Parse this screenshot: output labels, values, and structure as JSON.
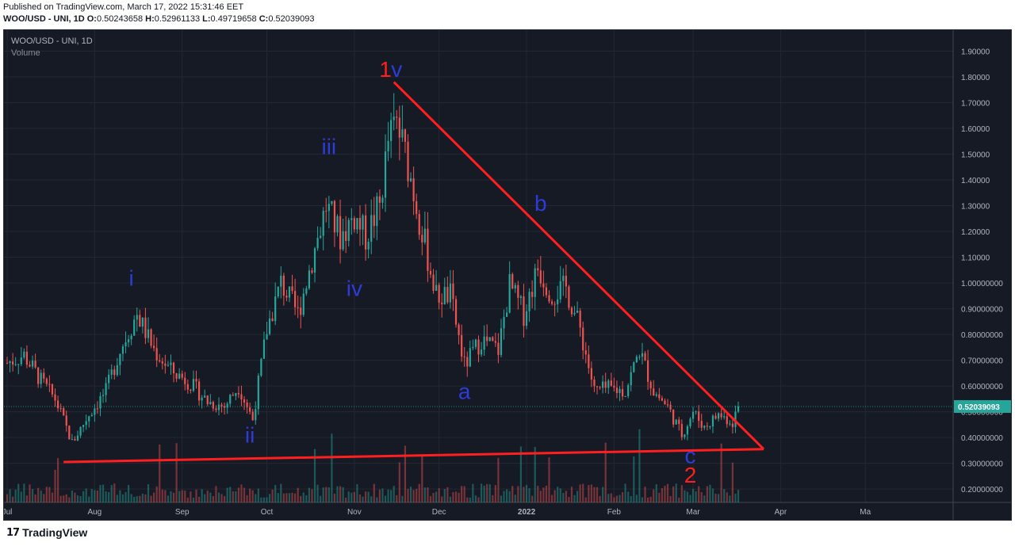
{
  "header": {
    "published": "Published on TradingView.com, March 17, 2022 15:31:46 EET",
    "symbol_line": "WOO/USD - UNI, 1D",
    "ohlc": [
      {
        "k": "O:",
        "v": "0.50243658"
      },
      {
        "k": "H:",
        "v": "0.52961133"
      },
      {
        "k": "L:",
        "v": "0.49719658"
      },
      {
        "k": "C:",
        "v": "0.52039093"
      }
    ]
  },
  "legend": {
    "symbol": "WOO/USD - UNI, 1D",
    "volume": "Volume"
  },
  "footer": {
    "brand": "TradingView"
  },
  "colors": {
    "up": "#26a69a",
    "down": "#ef5350",
    "trend": "#ff1f1f",
    "wave_blue": "#2d3bd8",
    "wave_red": "#ff1f1f",
    "last_label": "#26a69a"
  },
  "chart_data": {
    "type": "candlestick",
    "x_ticks": [
      "Jul",
      "Aug",
      "Sep",
      "Oct",
      "Nov",
      "Dec",
      "2022",
      "Feb",
      "Mar",
      "Apr",
      "Ma"
    ],
    "y_ticks": [
      "1.90000",
      "1.80000",
      "1.70000",
      "1.60000",
      "1.50000",
      "1.40000",
      "1.30000",
      "1.20000",
      "1.10000",
      "1.00000000",
      "0.90000000",
      "0.80000000",
      "0.70000000",
      "0.60000000",
      "0.50000000",
      "0.40000000",
      "0.30000000",
      "0.20000000"
    ],
    "ylim": [
      0.185,
      1.92
    ],
    "last_price": "0.52039093",
    "close_series": [
      {
        "day": "2021-07-01",
        "close": 0.69
      },
      {
        "day": "2021-07-07",
        "close": 0.72
      },
      {
        "day": "2021-07-13",
        "close": 0.62
      },
      {
        "day": "2021-07-18",
        "close": 0.55
      },
      {
        "day": "2021-07-24",
        "close": 0.38
      },
      {
        "day": "2021-07-30",
        "close": 0.49
      },
      {
        "day": "2021-08-05",
        "close": 0.58
      },
      {
        "day": "2021-08-10",
        "close": 0.74
      },
      {
        "day": "2021-08-16",
        "close": 0.88
      },
      {
        "day": "2021-08-22",
        "close": 0.74
      },
      {
        "day": "2021-08-28",
        "close": 0.66
      },
      {
        "day": "2021-09-03",
        "close": 0.62
      },
      {
        "day": "2021-09-10",
        "close": 0.54
      },
      {
        "day": "2021-09-16",
        "close": 0.52
      },
      {
        "day": "2021-09-21",
        "close": 0.6
      },
      {
        "day": "2021-09-26",
        "close": 0.47
      },
      {
        "day": "2021-10-01",
        "close": 0.82
      },
      {
        "day": "2021-10-06",
        "close": 1.0
      },
      {
        "day": "2021-10-12",
        "close": 0.88
      },
      {
        "day": "2021-10-16",
        "close": 1.05
      },
      {
        "day": "2021-10-22",
        "close": 1.3
      },
      {
        "day": "2021-10-27",
        "close": 1.18
      },
      {
        "day": "2021-11-01",
        "close": 1.26
      },
      {
        "day": "2021-11-05",
        "close": 1.18
      },
      {
        "day": "2021-11-10",
        "close": 1.3
      },
      {
        "day": "2021-11-13",
        "close": 1.55
      },
      {
        "day": "2021-11-16",
        "close": 1.62
      },
      {
        "day": "2021-11-20",
        "close": 1.46
      },
      {
        "day": "2021-11-25",
        "close": 1.2
      },
      {
        "day": "2021-11-30",
        "close": 0.95
      },
      {
        "day": "2021-12-05",
        "close": 0.95
      },
      {
        "day": "2021-12-10",
        "close": 0.68
      },
      {
        "day": "2021-12-16",
        "close": 0.78
      },
      {
        "day": "2021-12-22",
        "close": 0.74
      },
      {
        "day": "2021-12-26",
        "close": 0.99
      },
      {
        "day": "2021-12-31",
        "close": 0.88
      },
      {
        "day": "2022-01-05",
        "close": 1.06
      },
      {
        "day": "2022-01-10",
        "close": 0.96
      },
      {
        "day": "2022-01-15",
        "close": 0.98
      },
      {
        "day": "2022-01-20",
        "close": 0.82
      },
      {
        "day": "2022-01-25",
        "close": 0.58
      },
      {
        "day": "2022-01-30",
        "close": 0.59
      },
      {
        "day": "2022-02-05",
        "close": 0.58
      },
      {
        "day": "2022-02-10",
        "close": 0.74
      },
      {
        "day": "2022-02-15",
        "close": 0.58
      },
      {
        "day": "2022-02-20",
        "close": 0.52
      },
      {
        "day": "2022-02-25",
        "close": 0.41
      },
      {
        "day": "2022-03-01",
        "close": 0.5
      },
      {
        "day": "2022-03-05",
        "close": 0.44
      },
      {
        "day": "2022-03-10",
        "close": 0.49
      },
      {
        "day": "2022-03-15",
        "close": 0.46
      },
      {
        "day": "2022-03-17",
        "close": 0.52
      }
    ],
    "trendlines": [
      {
        "from": {
          "day": "2021-11-15",
          "price": 1.78
        },
        "to": {
          "day": "2022-03-26",
          "price": 0.355
        }
      },
      {
        "from": {
          "day": "2021-07-21",
          "price": 0.305
        },
        "to": {
          "day": "2022-03-26",
          "price": 0.355
        }
      }
    ],
    "wave_labels": [
      {
        "text": "i",
        "day": "2021-08-14",
        "price": 0.99,
        "color": "blue"
      },
      {
        "text": "ii",
        "day": "2021-09-25",
        "price": 0.38,
        "color": "blue"
      },
      {
        "text": "iii",
        "day": "2021-10-23",
        "price": 1.5,
        "color": "blue"
      },
      {
        "text": "iv",
        "day": "2021-11-01",
        "price": 0.95,
        "color": "blue"
      },
      {
        "text": "1",
        "day": "2021-11-12",
        "price": 1.8,
        "color": "red"
      },
      {
        "text": "v",
        "day": "2021-11-16",
        "price": 1.8,
        "color": "blue"
      },
      {
        "text": "a",
        "day": "2021-12-10",
        "price": 0.55,
        "color": "blue"
      },
      {
        "text": "b",
        "day": "2022-01-06",
        "price": 1.28,
        "color": "blue"
      },
      {
        "text": "c",
        "day": "2022-02-28",
        "price": 0.3,
        "color": "blue"
      },
      {
        "text": "2",
        "day": "2022-02-28",
        "price": 0.225,
        "color": "red"
      }
    ]
  }
}
